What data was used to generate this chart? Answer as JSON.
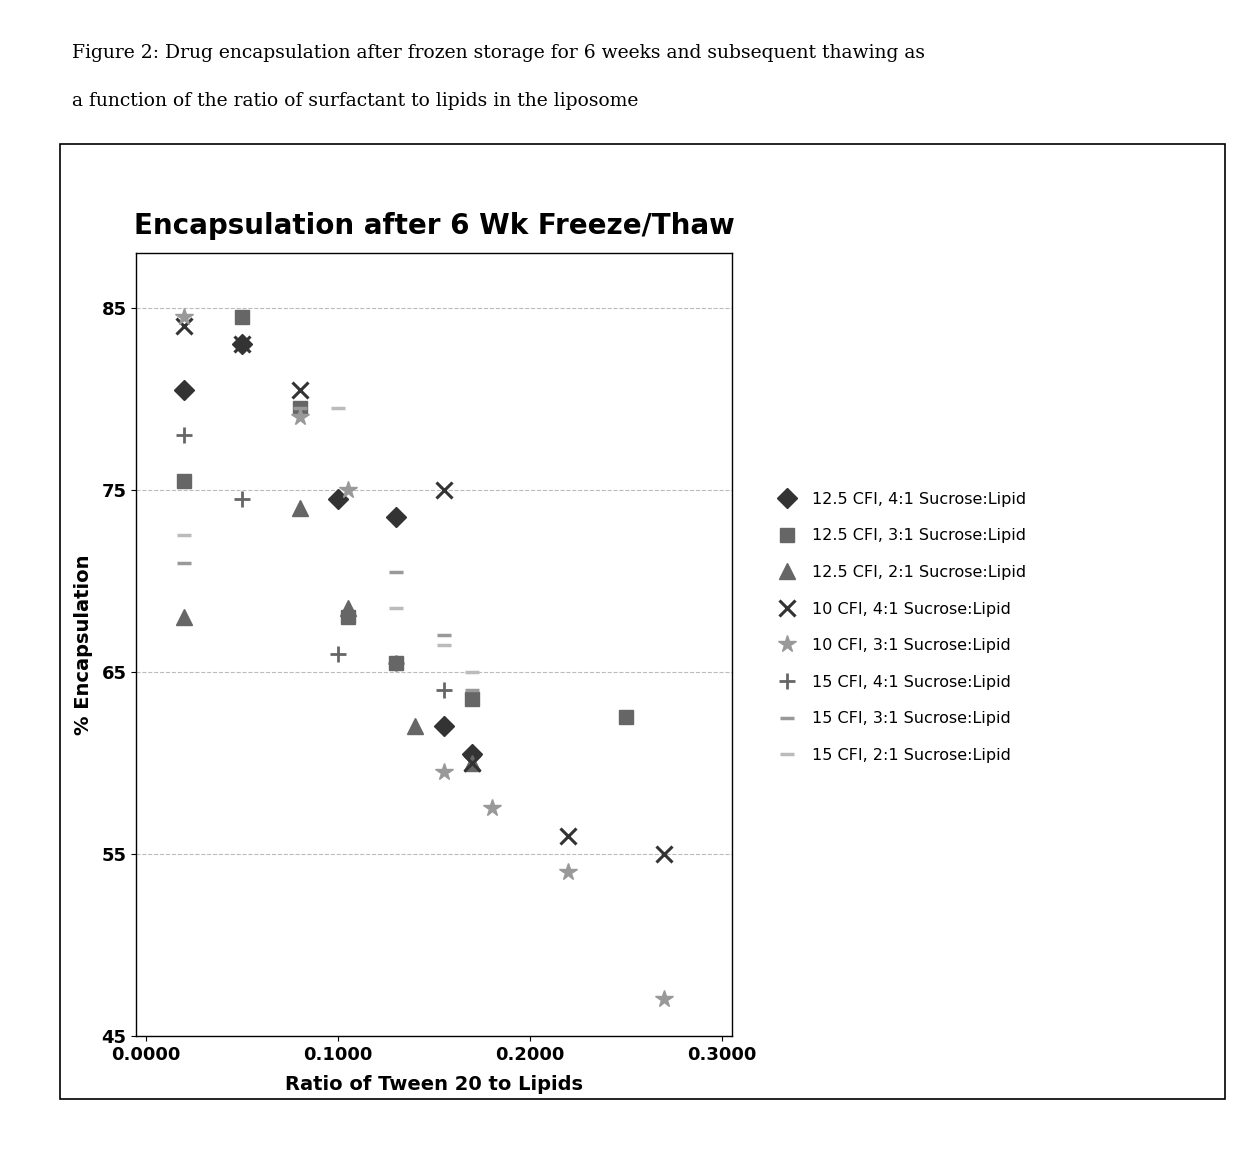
{
  "title": "Encapsulation after 6 Wk Freeze/Thaw",
  "xlabel": "Ratio of Tween 20 to Lipids",
  "ylabel": "% Encapsulation",
  "caption_line1": "Figure 2: Drug encapsulation after frozen storage for 6 weeks and subsequent thawing as",
  "caption_line2": "a function of the ratio of surfactant to lipids in the liposome",
  "xlim": [
    -0.005,
    0.305
  ],
  "ylim": [
    45,
    88
  ],
  "xticks": [
    0.0,
    0.1,
    0.2,
    0.3
  ],
  "yticks": [
    45,
    55,
    65,
    75,
    85
  ],
  "xticklabels": [
    "0.0000",
    "0.1000",
    "0.2000",
    "0.3000"
  ],
  "yticklabels": [
    "45",
    "55",
    "65",
    "75",
    "85"
  ],
  "series": {
    "s0": {
      "label": "12.5 CFI, 4:1 Sucrose:Lipid",
      "x": [
        0.02,
        0.05,
        0.1,
        0.13,
        0.155,
        0.17
      ],
      "y": [
        80.5,
        83.0,
        74.5,
        73.5,
        62.0,
        60.5
      ]
    },
    "s1": {
      "label": "12.5 CFI, 3:1 Sucrose:Lipid",
      "x": [
        0.02,
        0.05,
        0.08,
        0.105,
        0.13,
        0.17,
        0.25
      ],
      "y": [
        75.5,
        84.5,
        79.5,
        68.0,
        65.5,
        63.5,
        62.5
      ]
    },
    "s2": {
      "label": "12.5 CFI, 2:1 Sucrose:Lipid",
      "x": [
        0.02,
        0.08,
        0.105,
        0.14,
        0.17
      ],
      "y": [
        68.0,
        74.0,
        68.5,
        62.0,
        60.0
      ]
    },
    "s3": {
      "label": "10 CFI, 4:1 Sucrose:Lipid",
      "x": [
        0.02,
        0.05,
        0.08,
        0.155,
        0.17,
        0.22,
        0.27
      ],
      "y": [
        84.0,
        83.0,
        80.5,
        75.0,
        60.0,
        56.0,
        55.0
      ]
    },
    "s4": {
      "label": "10 CFI, 3:1 Sucrose:Lipid",
      "x": [
        0.02,
        0.08,
        0.105,
        0.155,
        0.18,
        0.22,
        0.27
      ],
      "y": [
        84.5,
        79.0,
        75.0,
        59.5,
        57.5,
        54.0,
        47.0
      ]
    },
    "s5": {
      "label": "15 CFI, 4:1 Sucrose:Lipid",
      "x": [
        0.02,
        0.05,
        0.1,
        0.13,
        0.155
      ],
      "y": [
        78.0,
        74.5,
        66.0,
        65.5,
        64.0
      ]
    },
    "s6": {
      "label": "15 CFI, 3:1 Sucrose:Lipid",
      "x": [
        0.02,
        0.08,
        0.13,
        0.155,
        0.17
      ],
      "y": [
        71.0,
        79.5,
        70.5,
        67.0,
        64.0
      ]
    },
    "s7": {
      "label": "15 CFI, 2:1 Sucrose:Lipid",
      "x": [
        0.02,
        0.1,
        0.13,
        0.155,
        0.17
      ],
      "y": [
        72.5,
        79.5,
        68.5,
        66.5,
        65.0
      ]
    }
  },
  "colors": {
    "dark": "#333333",
    "mid": "#666666",
    "light": "#999999",
    "vlight": "#bbbbbb"
  }
}
